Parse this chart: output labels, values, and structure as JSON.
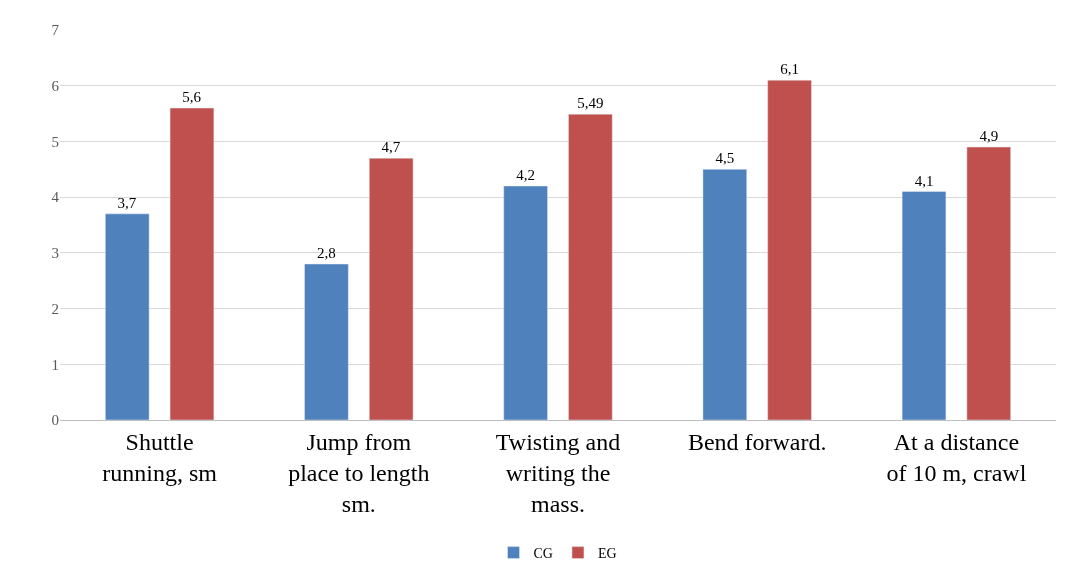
{
  "chart_data": {
    "type": "bar",
    "categories": [
      "Shuttle\nrunning, sm",
      "Jump from\nplace to length\nsm.",
      "Twisting and\nwriting the\nmass.",
      "Bend forward.",
      "At a distance\nof 10 m, crawl"
    ],
    "series": [
      {
        "name": "CG",
        "color": "#4f81bd",
        "values": [
          3.7,
          2.8,
          4.2,
          4.5,
          4.1
        ],
        "value_labels": [
          "3,7",
          "2,8",
          "4,2",
          "4,5",
          "4,1"
        ]
      },
      {
        "name": "EG",
        "color": "#c0504d",
        "values": [
          5.6,
          4.7,
          5.49,
          6.1,
          4.9
        ],
        "value_labels": [
          "5,6",
          "4,7",
          "5,49",
          "6,1",
          "4,9"
        ]
      }
    ],
    "ylim": [
      0,
      7
    ],
    "yticks": [
      0,
      1,
      2,
      3,
      4,
      5,
      6,
      7
    ],
    "grid": "y",
    "legend": "bottom"
  }
}
